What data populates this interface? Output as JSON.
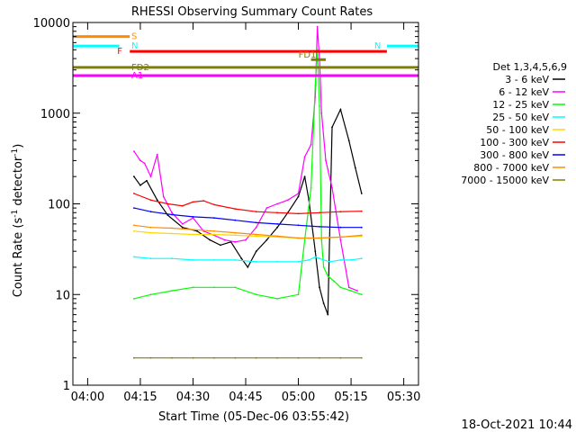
{
  "chart_data": {
    "type": "line",
    "title": "RHESSI Observing Summary Count Rates",
    "xlabel": "Start Time (05-Dec-06 03:55:42)",
    "ylabel_main": "Count Rate (s",
    "ylabel_sup": "-1",
    "ylabel_mid": " detector",
    "ylabel_end": ")",
    "y_scale": "log",
    "ylim": [
      1,
      10000
    ],
    "xlim": [
      3.93,
      5.57
    ],
    "x_ticks": [
      {
        "x": 4.0,
        "label": "04:00"
      },
      {
        "x": 4.25,
        "label": "04:15"
      },
      {
        "x": 4.5,
        "label": "04:30"
      },
      {
        "x": 4.75,
        "label": "04:45"
      },
      {
        "x": 5.0,
        "label": "05:00"
      },
      {
        "x": 5.25,
        "label": "05:15"
      },
      {
        "x": 5.5,
        "label": "05:30"
      }
    ],
    "y_ticks": [
      {
        "y": 1,
        "label": "1"
      },
      {
        "y": 10,
        "label": "10"
      },
      {
        "y": 100,
        "label": "100"
      },
      {
        "y": 1000,
        "label": "1000"
      },
      {
        "y": 10000,
        "label": "10000"
      }
    ],
    "legend_title": "Det 1,3,4,5,6,9",
    "legend_position": "right",
    "series": [
      {
        "name": "3 - 6 keV",
        "color": "#000000",
        "x": [
          4.22,
          4.25,
          4.28,
          4.33,
          4.38,
          4.45,
          4.52,
          4.58,
          4.63,
          4.68,
          4.73,
          4.76,
          4.8,
          4.85,
          4.9,
          4.95,
          5.0,
          5.03,
          5.05,
          5.08,
          5.1,
          5.12,
          5.14,
          5.16,
          5.2,
          5.24,
          5.27,
          5.3
        ],
        "y": [
          200,
          160,
          180,
          110,
          75,
          55,
          50,
          40,
          35,
          38,
          25,
          20,
          30,
          40,
          55,
          80,
          120,
          200,
          110,
          30,
          12,
          8,
          6,
          700,
          1100,
          500,
          250,
          130
        ]
      },
      {
        "name": "6 - 12 keV",
        "color": "#ff00ff",
        "x": [
          4.22,
          4.25,
          4.27,
          4.3,
          4.33,
          4.36,
          4.4,
          4.45,
          4.5,
          4.55,
          4.6,
          4.65,
          4.7,
          4.75,
          4.8,
          4.85,
          4.9,
          4.95,
          5.0,
          5.03,
          5.06,
          5.08,
          5.09,
          5.1,
          5.11,
          5.13,
          5.16,
          5.2,
          5.24,
          5.28
        ],
        "y": [
          380,
          300,
          280,
          200,
          350,
          120,
          80,
          60,
          70,
          50,
          45,
          40,
          38,
          40,
          55,
          90,
          100,
          110,
          130,
          330,
          450,
          1500,
          9000,
          4000,
          1000,
          300,
          150,
          40,
          12,
          11
        ]
      },
      {
        "name": "12 - 25 keV",
        "color": "#00ff00",
        "x": [
          4.22,
          4.3,
          4.4,
          4.5,
          4.6,
          4.7,
          4.8,
          4.9,
          5.0,
          5.03,
          5.06,
          5.08,
          5.09,
          5.1,
          5.11,
          5.12,
          5.14,
          5.17,
          5.2,
          5.25,
          5.3
        ],
        "y": [
          9,
          10,
          11,
          12,
          12,
          12,
          10,
          9,
          10,
          40,
          150,
          2000,
          5000,
          1200,
          40,
          20,
          16,
          14,
          12,
          11,
          10
        ]
      },
      {
        "name": "25 - 50 keV",
        "color": "#00ffff",
        "x": [
          4.22,
          4.3,
          4.4,
          4.5,
          4.6,
          4.7,
          4.8,
          4.9,
          5.0,
          5.05,
          5.08,
          5.1,
          5.12,
          5.15,
          5.2,
          5.25,
          5.3
        ],
        "y": [
          26,
          25,
          25,
          24,
          24,
          24,
          23,
          23,
          23,
          24,
          26,
          25,
          24,
          23,
          24,
          24,
          25
        ]
      },
      {
        "name": "50 - 100 keV",
        "color": "#ffd700",
        "x": [
          4.22,
          4.3,
          4.4,
          4.5,
          4.6,
          4.7,
          4.8,
          4.9,
          5.0,
          5.1,
          5.2,
          5.3
        ],
        "y": [
          50,
          48,
          47,
          46,
          46,
          45,
          44,
          43,
          42,
          42,
          43,
          44
        ]
      },
      {
        "name": "100 - 300 keV",
        "color": "#ff0000",
        "x": [
          4.22,
          4.3,
          4.38,
          4.45,
          4.5,
          4.55,
          4.6,
          4.7,
          4.8,
          4.9,
          5.0,
          5.1,
          5.2,
          5.3
        ],
        "y": [
          130,
          110,
          100,
          95,
          105,
          108,
          98,
          88,
          82,
          80,
          78,
          80,
          82,
          83
        ]
      },
      {
        "name": "300 - 800 keV",
        "color": "#0000ff",
        "x": [
          4.22,
          4.3,
          4.4,
          4.5,
          4.6,
          4.7,
          4.8,
          4.9,
          5.0,
          5.1,
          5.2,
          5.3
        ],
        "y": [
          90,
          82,
          76,
          72,
          70,
          66,
          62,
          60,
          58,
          56,
          55,
          55
        ]
      },
      {
        "name": "800 - 7000 keV",
        "color": "#ff8c00",
        "x": [
          4.22,
          4.3,
          4.4,
          4.5,
          4.6,
          4.7,
          4.8,
          4.9,
          5.0,
          5.1,
          5.2,
          5.3
        ],
        "y": [
          58,
          55,
          54,
          52,
          50,
          48,
          46,
          44,
          42,
          42,
          43,
          45
        ]
      },
      {
        "name": "7000 - 15000 keV",
        "color": "#808000",
        "x": [
          4.22,
          4.3,
          4.4,
          4.5,
          4.6,
          4.7,
          4.8,
          4.9,
          5.0,
          5.1,
          5.2,
          5.3
        ],
        "y": [
          2,
          2,
          2,
          2,
          2,
          2,
          2,
          2,
          2,
          2,
          2,
          2
        ]
      }
    ],
    "state_bars": [
      {
        "label": "S",
        "color": "#ff8c00",
        "x0": 3.93,
        "x1": 4.2,
        "y": 7000
      },
      {
        "label": "N",
        "color": "#00ffff",
        "x0": 3.93,
        "x1": 4.15,
        "y": 5500
      },
      {
        "label": "N",
        "color": "#00ffff",
        "x0": 5.42,
        "x1": 5.57,
        "y": 5500
      },
      {
        "label": "F",
        "color": "#ff0000",
        "x0": 4.2,
        "x1": 5.42,
        "y": 4800
      },
      {
        "label": "FD1",
        "color": "#808000",
        "x0": 5.06,
        "x1": 5.13,
        "y": 3900
      },
      {
        "label": "FD2",
        "color": "#808000",
        "x0": 3.93,
        "x1": 5.57,
        "y": 3200
      },
      {
        "label": "A1",
        "color": "#ff00ff",
        "x0": 3.93,
        "x1": 5.57,
        "y": 2600
      }
    ],
    "footer_timestamp": "18-Oct-2021 10:44"
  }
}
